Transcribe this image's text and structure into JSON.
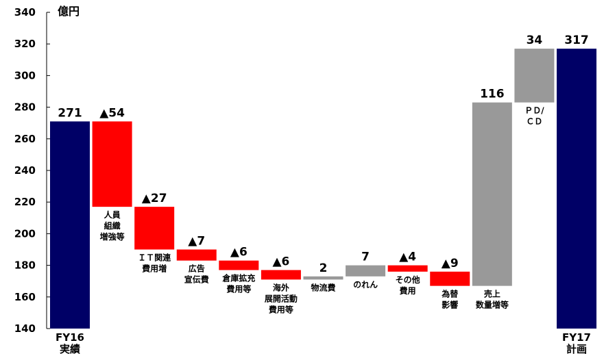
{
  "chart_data": {
    "type": "bar",
    "unit": "億円",
    "ylim": [
      140,
      340
    ],
    "yticks": [
      140,
      160,
      180,
      200,
      220,
      240,
      260,
      280,
      300,
      320,
      340
    ],
    "grid": false,
    "legend": "none",
    "colors": {
      "total": "#000066",
      "decrease": "#ff0000",
      "increase": "#999999"
    },
    "bars": [
      {
        "label_lines": [
          "FY16",
          "実績"
        ],
        "value_label": "271",
        "kind": "total",
        "start": 140,
        "end": 271
      },
      {
        "label_lines": [
          "人員",
          "組織",
          "増強等"
        ],
        "value_label": "▲54",
        "kind": "decrease",
        "start": 271,
        "end": 217
      },
      {
        "label_lines": [
          "ＩＴ関連",
          "費用増"
        ],
        "value_label": "▲27",
        "kind": "decrease",
        "start": 217,
        "end": 190
      },
      {
        "label_lines": [
          "広告",
          "宣伝費"
        ],
        "value_label": "▲7",
        "kind": "decrease",
        "start": 190,
        "end": 183
      },
      {
        "label_lines": [
          "倉庫拡充",
          "費用等"
        ],
        "value_label": "▲6",
        "kind": "decrease",
        "start": 183,
        "end": 177
      },
      {
        "label_lines": [
          "海外",
          "展開活動",
          "費用等"
        ],
        "value_label": "▲6",
        "kind": "decrease",
        "start": 177,
        "end": 171
      },
      {
        "label_lines": [
          "物流費"
        ],
        "value_label": "2",
        "kind": "increase",
        "start": 171,
        "end": 173
      },
      {
        "label_lines": [
          "のれん"
        ],
        "value_label": "7",
        "kind": "increase",
        "start": 173,
        "end": 180
      },
      {
        "label_lines": [
          "その他",
          "費用"
        ],
        "value_label": "▲4",
        "kind": "decrease",
        "start": 180,
        "end": 176
      },
      {
        "label_lines": [
          "為替",
          "影響"
        ],
        "value_label": "▲9",
        "kind": "decrease",
        "start": 176,
        "end": 167
      },
      {
        "label_lines": [
          "売上",
          "数量増等"
        ],
        "value_label": "116",
        "kind": "increase",
        "start": 167,
        "end": 283
      },
      {
        "label_lines": [
          "ＰＤ/",
          "ＣＤ"
        ],
        "value_label": "34",
        "kind": "increase",
        "start": 283,
        "end": 317
      },
      {
        "label_lines": [
          "FY17",
          "計画"
        ],
        "value_label": "317",
        "kind": "total",
        "start": 140,
        "end": 317
      }
    ]
  }
}
